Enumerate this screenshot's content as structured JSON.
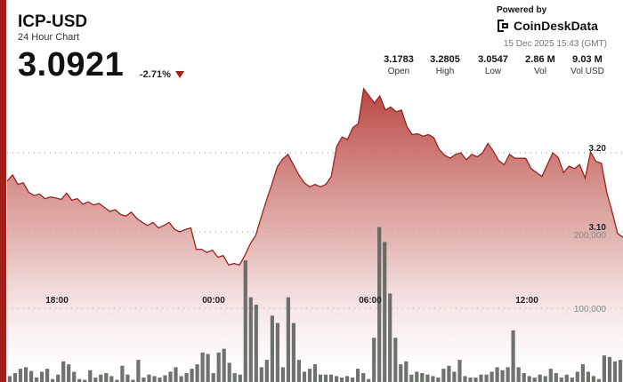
{
  "header": {
    "title": "ICP-USD",
    "subtitle": "24 Hour Chart",
    "price": "3.0921",
    "change": "-2.71%",
    "powered_by": "Powered by",
    "brand": "CoinDeskData",
    "timestamp": "15 Dec 2025 15:43 (GMT)"
  },
  "stats": [
    {
      "value": "3.1783",
      "label": "Open"
    },
    {
      "value": "3.2805",
      "label": "High"
    },
    {
      "value": "3.0547",
      "label": "Low"
    },
    {
      "value": "2.86 M",
      "label": "Vol"
    },
    {
      "value": "9.03 M",
      "label": "Vol USD"
    }
  ],
  "colors": {
    "accent": "#a31f1a",
    "area_top": "#b8403a",
    "volume": "#555a55"
  },
  "chart_data": [
    {
      "type": "area",
      "series": "price",
      "x_ticks": [
        "18:00",
        "00:00",
        "06:00",
        "12:00"
      ],
      "y_ticks": [
        "3.20",
        "3.10"
      ],
      "y_tick_values": [
        3.2,
        3.1
      ],
      "values": [
        3.164,
        3.172,
        3.16,
        3.162,
        3.15,
        3.146,
        3.148,
        3.142,
        3.144,
        3.143,
        3.141,
        3.149,
        3.14,
        3.142,
        3.135,
        3.138,
        3.134,
        3.136,
        3.131,
        3.126,
        3.128,
        3.122,
        3.12,
        3.125,
        3.117,
        3.112,
        3.108,
        3.112,
        3.105,
        3.108,
        3.112,
        3.103,
        3.1,
        3.103,
        3.105,
        3.078,
        3.078,
        3.074,
        3.077,
        3.068,
        3.07,
        3.058,
        3.06,
        3.058,
        3.07,
        3.085,
        3.095,
        3.118,
        3.14,
        3.16,
        3.182,
        3.192,
        3.198,
        3.185,
        3.172,
        3.162,
        3.157,
        3.16,
        3.157,
        3.16,
        3.17,
        3.208,
        3.22,
        3.217,
        3.232,
        3.237,
        3.281,
        3.272,
        3.263,
        3.272,
        3.254,
        3.258,
        3.252,
        3.254,
        3.233,
        3.223,
        3.224,
        3.221,
        3.223,
        3.219,
        3.204,
        3.197,
        3.193,
        3.198,
        3.2,
        3.191,
        3.198,
        3.195,
        3.2,
        3.212,
        3.202,
        3.19,
        3.185,
        3.198,
        3.193,
        3.193,
        3.193,
        3.18,
        3.175,
        3.17,
        3.185,
        3.2,
        3.194,
        3.175,
        3.183,
        3.18,
        3.185,
        3.168,
        3.201,
        3.189,
        3.187,
        3.15,
        3.125,
        3.098,
        3.093
      ]
    },
    {
      "type": "bar",
      "series": "volume",
      "y_ticks": [
        "200,000",
        "100,000"
      ],
      "y_tick_values": [
        200000,
        100000
      ],
      "values": [
        8000,
        12000,
        18000,
        20000,
        15000,
        6000,
        14000,
        18000,
        4000,
        10000,
        28000,
        24000,
        14000,
        4000,
        3000,
        16000,
        6000,
        10000,
        12000,
        8000,
        3000,
        22000,
        10000,
        3000,
        30000,
        6000,
        10000,
        8000,
        6000,
        9000,
        14000,
        20000,
        8000,
        12000,
        18000,
        24000,
        40000,
        38000,
        12000,
        40000,
        45000,
        26000,
        12000,
        10000,
        165000,
        115000,
        105000,
        20000,
        30000,
        90000,
        80000,
        20000,
        115000,
        80000,
        30000,
        14000,
        18000,
        24000,
        10000,
        10000,
        10000,
        8000,
        6000,
        8000,
        6000,
        18000,
        12000,
        4000,
        60000,
        210000,
        190000,
        120000,
        60000,
        24000,
        28000,
        10000,
        14000,
        12000,
        10000,
        8000,
        6000,
        18000,
        22000,
        14000,
        30000,
        8000,
        6000,
        6000,
        10000,
        10000,
        14000,
        20000,
        16000,
        20000,
        70000,
        20000,
        12000,
        8000,
        6000,
        10000,
        8000,
        18000,
        12000,
        6000,
        10000,
        6000,
        14000,
        24000,
        14000,
        8000,
        4000,
        36000,
        34000,
        28000,
        30000
      ]
    }
  ]
}
